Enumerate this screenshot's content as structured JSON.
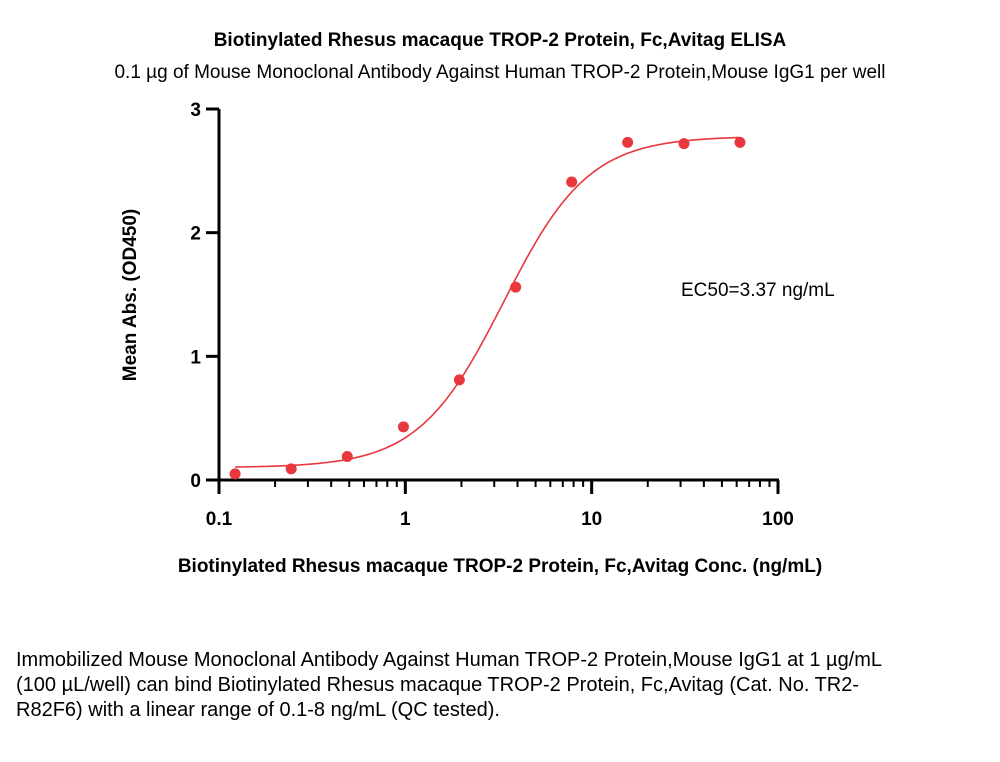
{
  "chart_data": {
    "type": "scatter",
    "title": "Biotinylated Rhesus macaque TROP-2 Protein, Fc,Avitag ELISA",
    "subtitle": "0.1 µg of Mouse Monoclonal Antibody Against Human TROP-2 Protein,Mouse IgG1 per well",
    "xlabel": "Biotinylated Rhesus macaque TROP-2 Protein, Fc,Avitag Conc. (ng/mL)",
    "ylabel": "Mean Abs. (OD450)",
    "x_scale": "log",
    "xlim": [
      0.1,
      100
    ],
    "ylim": [
      0,
      3
    ],
    "x_ticks": [
      "0.1",
      "1",
      "10",
      "100"
    ],
    "y_ticks": [
      "0",
      "1",
      "2",
      "3"
    ],
    "annotation": "EC50=3.37 ng/mL",
    "series": [
      {
        "color": "#e8383d",
        "points": [
          {
            "x": 0.122,
            "y": 0.05
          },
          {
            "x": 0.244,
            "y": 0.09
          },
          {
            "x": 0.488,
            "y": 0.19
          },
          {
            "x": 0.977,
            "y": 0.43
          },
          {
            "x": 1.95,
            "y": 0.81
          },
          {
            "x": 3.91,
            "y": 1.56
          },
          {
            "x": 7.81,
            "y": 2.41
          },
          {
            "x": 15.6,
            "y": 2.73
          },
          {
            "x": 31.3,
            "y": 2.72
          },
          {
            "x": 62.5,
            "y": 2.73
          }
        ],
        "fit": {
          "model": "4PL",
          "bottom": 0.1,
          "top": 2.78,
          "ec50": 3.37,
          "hill": 1.9
        }
      }
    ],
    "grid": false,
    "legend": "none"
  },
  "caption": "Immobilized Mouse Monoclonal Antibody Against Human TROP-2 Protein,Mouse IgG1 at 1 µg/mL (100 µL/well) can bind Biotinylated Rhesus macaque TROP-2 Protein, Fc,Avitag (Cat. No. TR2-R82F6) with a linear range of 0.1-8 ng/mL (QC tested)."
}
